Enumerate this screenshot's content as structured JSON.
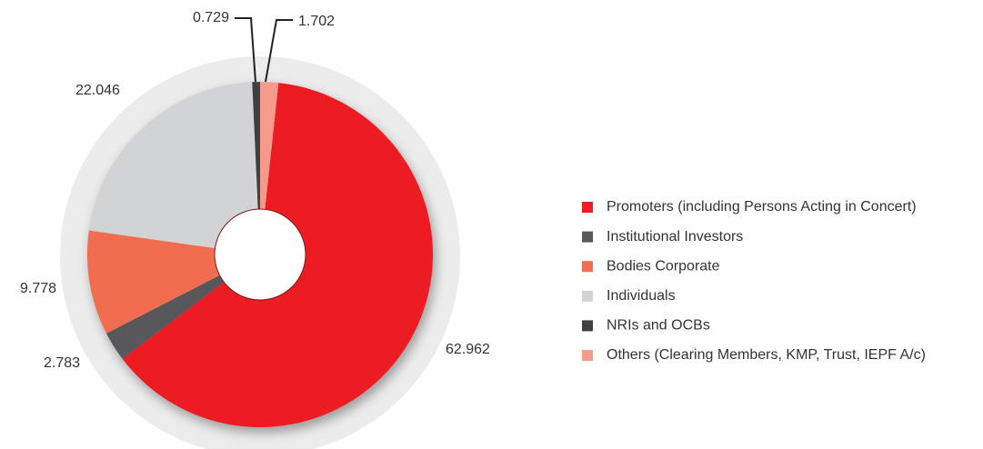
{
  "chart_data": {
    "type": "pie",
    "categories": [
      "Promoters (including Persons Acting in Concert)",
      "Institutional Investors",
      "Bodies Corporate",
      "Individuals",
      "NRIs and OCBs",
      "Others (Clearing Members,  KMP,  Trust, IEPF A/c)"
    ],
    "values": [
      62.962,
      2.783,
      9.778,
      22.046,
      0.729,
      1.702
    ],
    "colors": [
      "#ed1c24",
      "#58595b",
      "#f26d50",
      "#d1d3d4",
      "#414042",
      "#f69a8c"
    ],
    "legend": "right"
  }
}
